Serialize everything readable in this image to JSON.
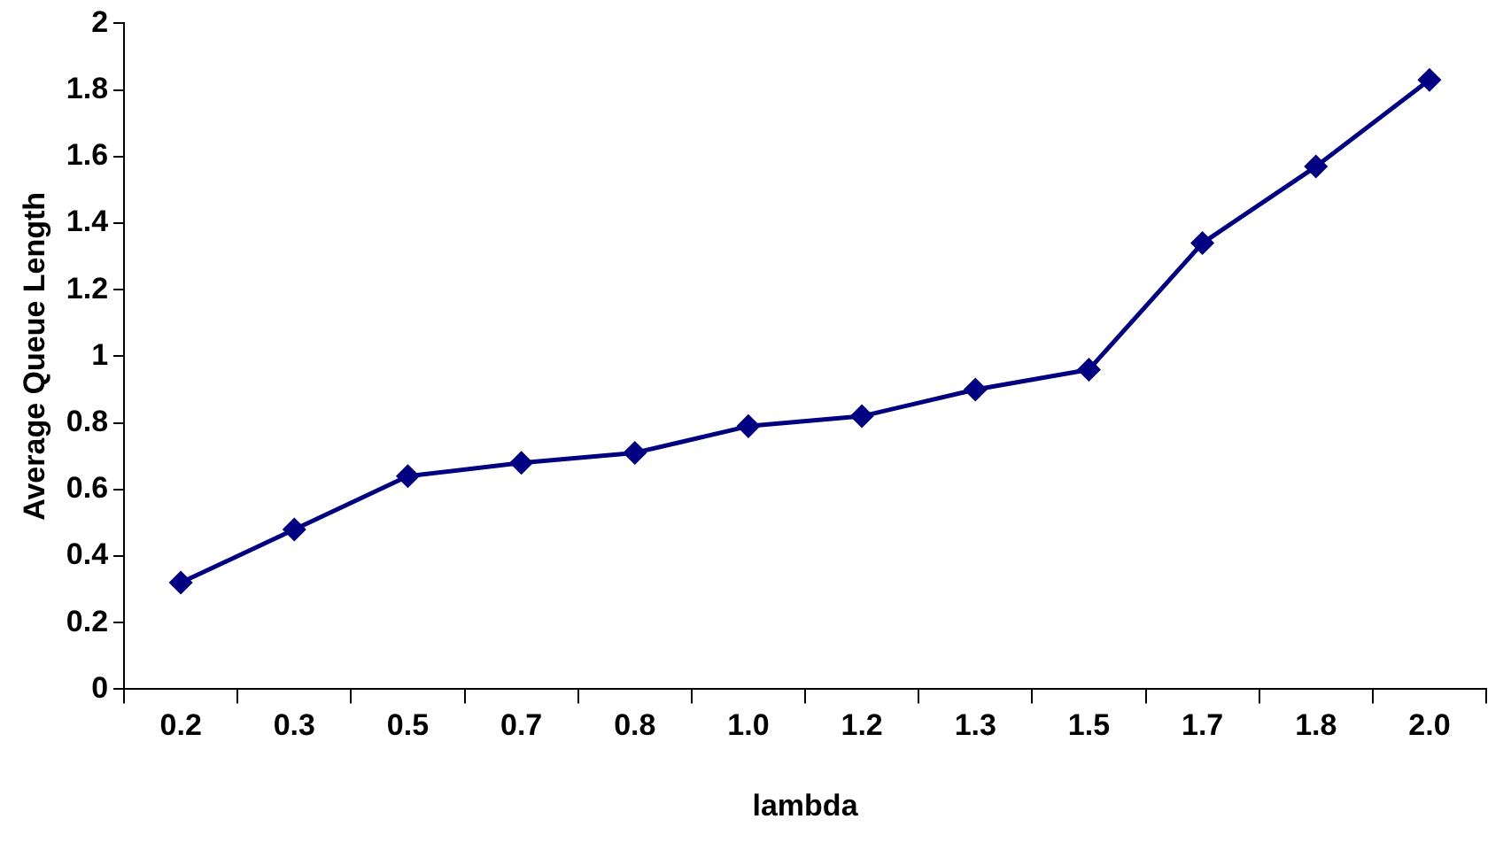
{
  "chart_data": {
    "type": "line",
    "xlabel": "lambda",
    "ylabel": "Average Queue Length",
    "categories": [
      "0.2",
      "0.3",
      "0.5",
      "0.7",
      "0.8",
      "1.0",
      "1.2",
      "1.3",
      "1.5",
      "1.7",
      "1.8",
      "2.0"
    ],
    "series": [
      {
        "color": "#000080",
        "values": [
          0.32,
          0.48,
          0.64,
          0.68,
          0.71,
          0.79,
          0.82,
          0.9,
          0.96,
          1.34,
          1.57,
          1.83
        ]
      }
    ],
    "ylim": [
      0,
      2
    ],
    "yticks": [
      0,
      0.2,
      0.4,
      0.6,
      0.8,
      1,
      1.2,
      1.4,
      1.6,
      1.8,
      2
    ],
    "grid": false,
    "legend": false,
    "marker": "diamond",
    "line_style": "solid"
  }
}
